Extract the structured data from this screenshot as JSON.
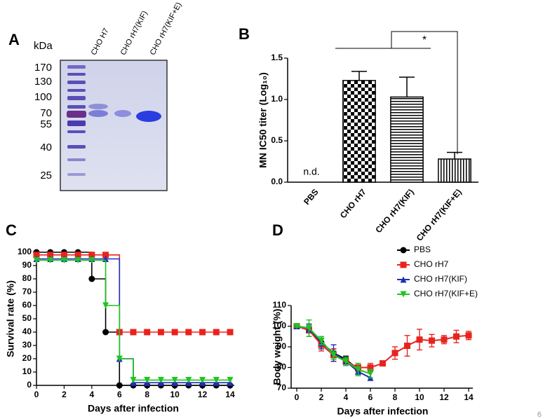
{
  "page_number": "6",
  "gel": {
    "label": "A",
    "unit": "kDa",
    "lanes": [
      "CHO H7",
      "CHO rH7(KIF)",
      "CHO rH7(KIF+E)"
    ],
    "markers": [
      170,
      130,
      100,
      70,
      55,
      40,
      25
    ]
  },
  "chart_data": [
    {
      "type": "bar",
      "label": "B",
      "ylabel": "MN IC50 titer (Log₁₀)",
      "categories": [
        "PBS",
        "CHO rH7",
        "CHO rH7(KIF)",
        "CHO rH7(KIF+E)"
      ],
      "values": [
        null,
        1.23,
        1.03,
        0.28
      ],
      "errors": [
        null,
        0.11,
        0.24,
        0.08
      ],
      "patterns": [
        null,
        "checker",
        "horizontal",
        "vertical"
      ],
      "color": "#000000",
      "missing_label": "n.d.",
      "significance": "*",
      "ylim": [
        0,
        1.5
      ],
      "yticks": [
        {
          "value": 0,
          "label": "0.0"
        },
        0.5,
        {
          "value": 1,
          "label": "1.0"
        },
        1.5
      ]
    },
    {
      "type": "step",
      "label": "C",
      "xlabel": "Days after infection",
      "ylabel": "Survival rate (%)",
      "x": [
        0,
        1,
        2,
        3,
        4,
        5,
        6,
        7,
        8,
        9,
        10,
        11,
        12,
        13,
        14
      ],
      "series": [
        {
          "color": "#000000",
          "marker": "circle",
          "values": [
            100,
            100,
            100,
            100,
            80,
            40,
            0,
            0,
            0,
            0,
            0,
            0,
            0,
            0,
            0
          ]
        },
        {
          "color": "#e8231e",
          "marker": "square",
          "values": [
            98,
            98,
            98,
            98,
            98,
            98,
            40,
            40,
            40,
            40,
            40,
            40,
            40,
            40,
            40
          ]
        },
        {
          "color": "#1f2fb5",
          "marker": "triangle-up",
          "values": [
            95,
            95,
            95,
            95,
            95,
            95,
            20,
            2,
            2,
            2,
            2,
            2,
            2,
            2,
            2
          ]
        },
        {
          "color": "#1fc41f",
          "marker": "triangle-down",
          "values": [
            94,
            94,
            94,
            94,
            94,
            60,
            20,
            4,
            4,
            4,
            4,
            4,
            4,
            4,
            4
          ]
        }
      ],
      "xlim": [
        0,
        14
      ],
      "ylim": [
        0,
        100
      ],
      "xticks": [
        0,
        2,
        4,
        6,
        8,
        10,
        12,
        14
      ],
      "yticks": [
        0,
        10,
        20,
        30,
        40,
        50,
        60,
        70,
        80,
        90,
        100
      ]
    },
    {
      "type": "line",
      "label": "D",
      "xlabel": "Days after infection",
      "ylabel": "Body weight (%)",
      "x": [
        0,
        1,
        2,
        3,
        4,
        5,
        6,
        7,
        8,
        9,
        10,
        11,
        12,
        13,
        14
      ],
      "series": [
        {
          "name": "PBS",
          "color": "#000000",
          "marker": "circle",
          "values": [
            100,
            99,
            92,
            87,
            84,
            79,
            null,
            null,
            null,
            null,
            null,
            null,
            null,
            null,
            null
          ],
          "errors": [
            0.5,
            2,
            2,
            2,
            1.5,
            2,
            null,
            null,
            null,
            null,
            null,
            null,
            null,
            null,
            null
          ]
        },
        {
          "name": "CHO rH7",
          "color": "#e8231e",
          "marker": "square",
          "values": [
            100,
            98,
            91,
            86,
            83,
            80,
            80,
            82,
            87,
            90.5,
            93.5,
            93,
            93.5,
            95,
            95.5
          ],
          "errors": [
            0.5,
            3,
            3,
            3,
            2,
            2,
            2,
            0.5,
            3,
            5,
            5,
            3,
            2,
            3,
            2
          ]
        },
        {
          "name": "CHO rH7(KIF)",
          "color": "#1f2fb5",
          "marker": "triangle-up",
          "values": [
            100,
            99,
            92,
            87,
            83,
            78,
            75,
            null,
            null,
            null,
            null,
            null,
            null,
            null,
            null
          ],
          "errors": [
            0.5,
            2,
            3,
            4,
            2,
            2,
            null,
            null,
            null,
            null,
            null,
            null,
            null,
            null,
            null
          ]
        },
        {
          "name": "CHO rH7(KIF+E)",
          "color": "#1fc41f",
          "marker": "triangle-down",
          "values": [
            100,
            99,
            93,
            86,
            83,
            79,
            77,
            null,
            null,
            null,
            null,
            null,
            null,
            null,
            null
          ],
          "errors": [
            0.5,
            4,
            2,
            2,
            2,
            3,
            2,
            null,
            null,
            null,
            null,
            null,
            null,
            null,
            null
          ]
        }
      ],
      "legend": "upper right",
      "xlim": [
        0,
        14
      ],
      "ylim": [
        70,
        110
      ],
      "xticks": [
        0,
        2,
        4,
        6,
        8,
        10,
        12,
        14
      ],
      "yticks": [
        70,
        80,
        90,
        100,
        110
      ]
    }
  ]
}
